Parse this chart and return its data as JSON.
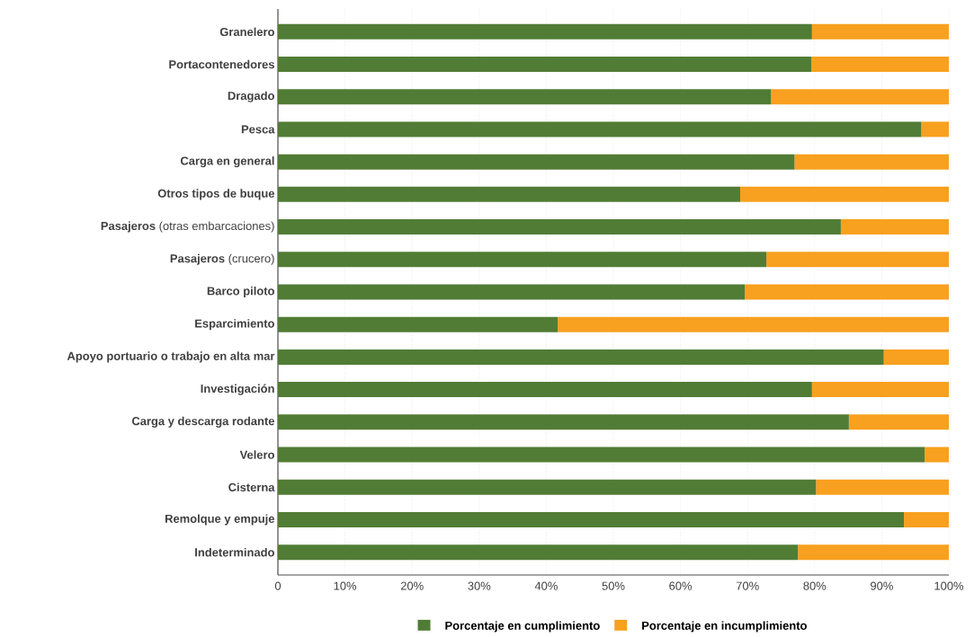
{
  "chart_data": {
    "type": "bar",
    "orientation": "horizontal",
    "stacked": true,
    "categories": [
      "Granelero",
      "Portacontenedores",
      "Dragado",
      "Pesca",
      "Carga en general",
      "Otros tipos de buque",
      "**Pasajeros** (otras embarcaciones)",
      "**Pasajeros** (crucero)",
      "Barco piloto",
      "Esparcimiento",
      "Apoyo portuario o trabajo en alta mar",
      "Investigación",
      "Carga y descarga rodante",
      "Velero",
      "Cisterna",
      "Remolque y empuje",
      "Indeterminado"
    ],
    "series": [
      {
        "name": "Porcentaje en cumplimiento",
        "color": "#517c35",
        "values": [
          79.6,
          79.5,
          73.5,
          95.9,
          77.0,
          68.9,
          83.9,
          72.8,
          69.6,
          41.7,
          90.3,
          79.6,
          85.1,
          96.4,
          80.2,
          93.3,
          77.5
        ]
      },
      {
        "name": "Porcentaje en incumplimiento",
        "color": "#f8a01f",
        "values": [
          20.4,
          20.5,
          26.5,
          4.1,
          23.0,
          31.1,
          16.1,
          27.2,
          30.4,
          58.3,
          9.7,
          20.4,
          14.9,
          3.6,
          19.8,
          6.7,
          22.5
        ]
      }
    ],
    "xlim": [
      0,
      100
    ],
    "xticks": [
      {
        "value": 0,
        "label": "0"
      },
      {
        "value": 10,
        "label": "10%"
      },
      {
        "value": 20,
        "label": "20%"
      },
      {
        "value": 30,
        "label": "30%"
      },
      {
        "value": 40,
        "label": "40%"
      },
      {
        "value": 50,
        "label": "50%"
      },
      {
        "value": 60,
        "label": "60%"
      },
      {
        "value": 70,
        "label": "70%"
      },
      {
        "value": 80,
        "label": "80%"
      },
      {
        "value": 90,
        "label": "90%"
      },
      {
        "value": 100,
        "label": "100%"
      }
    ],
    "grid": "x",
    "legend": "bottom"
  }
}
